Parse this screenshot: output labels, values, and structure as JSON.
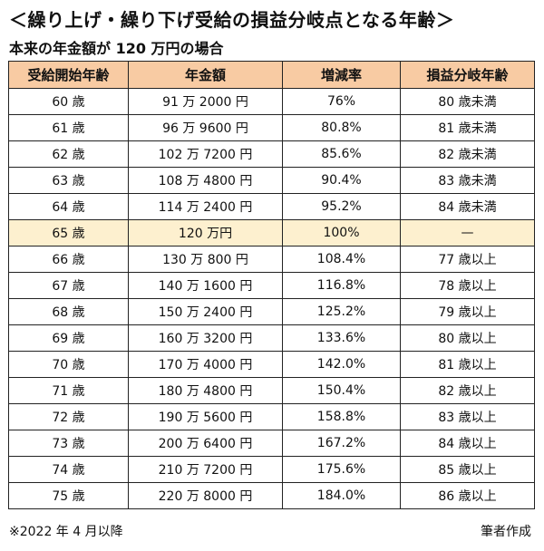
{
  "title": "＜繰り上げ・繰り下げ受給の損益分岐点となる年齢＞",
  "subtitle": "本来の年金額が 120 万円の場合",
  "header": [
    "受給開始年齢",
    "年金額",
    "増減率",
    "損益分岐年齢"
  ],
  "highlight_row": 5,
  "colors": {
    "header_bg": "#f8cba3",
    "highlight_bg": "#fdf0cf"
  },
  "rows": [
    [
      "60 歳",
      "91 万 2000 円",
      "76%",
      "80 歳未満"
    ],
    [
      "61 歳",
      "96 万 9600 円",
      "80.8%",
      "81 歳未満"
    ],
    [
      "62 歳",
      "102 万 7200 円",
      "85.6%",
      "82 歳未満"
    ],
    [
      "63 歳",
      "108 万 4800 円",
      "90.4%",
      "83 歳未満"
    ],
    [
      "64 歳",
      "114 万 2400 円",
      "95.2%",
      "84 歳未満"
    ],
    [
      "65 歳",
      "120 万円",
      "100%",
      "—"
    ],
    [
      "66 歳",
      "130 万 800 円",
      "108.4%",
      "77 歳以上"
    ],
    [
      "67 歳",
      "140 万 1600 円",
      "116.8%",
      "78 歳以上"
    ],
    [
      "68 歳",
      "150 万 2400 円",
      "125.2%",
      "79 歳以上"
    ],
    [
      "69 歳",
      "160 万 3200 円",
      "133.6%",
      "80 歳以上"
    ],
    [
      "70 歳",
      "170 万 4000 円",
      "142.0%",
      "81 歳以上"
    ],
    [
      "71 歳",
      "180 万 4800 円",
      "150.4%",
      "82 歳以上"
    ],
    [
      "72 歳",
      "190 万 5600 円",
      "158.8%",
      "83 歳以上"
    ],
    [
      "73 歳",
      "200 万 6400 円",
      "167.2%",
      "84 歳以上"
    ],
    [
      "74 歳",
      "210 万 7200 円",
      "175.6%",
      "85 歳以上"
    ],
    [
      "75 歳",
      "220 万 8000 円",
      "184.0%",
      "86 歳以上"
    ]
  ],
  "footer": {
    "note": "※2022 年 4 月以降",
    "author": "筆者作成"
  }
}
